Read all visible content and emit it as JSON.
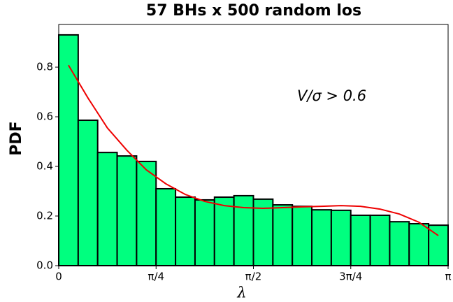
{
  "chart_data": {
    "type": "histogram",
    "title": "57 BHs x 500 random los",
    "x_label": "λ",
    "y_label": "PDF",
    "annotation": "V/σ > 0.6",
    "bins": [
      0,
      0.1571,
      0.3142,
      0.4712,
      0.6283,
      0.7854,
      0.9425,
      1.0996,
      1.2566,
      1.4137,
      1.5708,
      1.7279,
      1.885,
      2.042,
      2.1991,
      2.3562,
      2.5133,
      2.6704,
      2.8274,
      2.9845,
      3.1416
    ],
    "values": [
      0.93,
      0.586,
      0.456,
      0.442,
      0.42,
      0.31,
      0.276,
      0.265,
      0.276,
      0.282,
      0.268,
      0.245,
      0.239,
      0.225,
      0.223,
      0.203,
      0.203,
      0.177,
      0.169,
      0.163
    ],
    "color": "#00ff7f",
    "edge_color": "#000000",
    "overlay": {
      "x": [
        0.0785,
        0.2356,
        0.3927,
        0.5498,
        0.7069,
        0.8639,
        1.021,
        1.1781,
        1.3352,
        1.4923,
        1.6493,
        1.8064,
        1.9635,
        2.1206,
        2.2777,
        2.4347,
        2.5918,
        2.7489,
        2.906,
        3.0631
      ],
      "values": [
        0.808,
        0.676,
        0.555,
        0.465,
        0.386,
        0.33,
        0.287,
        0.259,
        0.242,
        0.234,
        0.231,
        0.234,
        0.237,
        0.239,
        0.242,
        0.239,
        0.228,
        0.208,
        0.175,
        0.121
      ],
      "color": "#ee0000"
    },
    "xlim": [
      0,
      3.1416
    ],
    "ylim": [
      0,
      0.972
    ],
    "xticks": [
      0,
      {
        "value": 0.7854,
        "label": "π/4"
      },
      {
        "value": 1.5708,
        "label": "π/2"
      },
      {
        "value": 2.3562,
        "label": "3π/4"
      },
      {
        "value": 3.1416,
        "label": "π"
      }
    ],
    "yticks": [
      {
        "value": 0,
        "label": "0.0"
      },
      0.2,
      0.4,
      0.6,
      0.8
    ]
  }
}
